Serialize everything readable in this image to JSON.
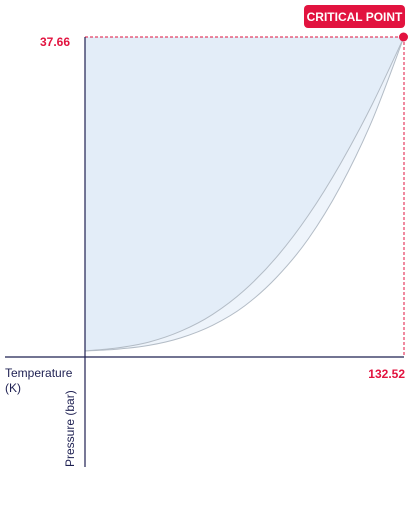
{
  "chart_data": {
    "type": "area",
    "annotation": "CRITICAL POINT",
    "critical_point": {
      "x": 132.52,
      "y": 37.66,
      "x_label": "132.52",
      "y_label": "37.66"
    },
    "xlabel": "Temperature\n(K)",
    "ylabel": "Pressure (bar)",
    "xlim": [
      0,
      132.52
    ],
    "ylim": [
      0,
      37.66
    ],
    "curves": [
      {
        "name": "",
        "x": [
          0,
          13.25,
          26.5,
          39.76,
          53.01,
          66.26,
          79.51,
          92.76,
          106.02,
          119.27,
          132.52
        ],
        "y": [
          0.25,
          0.6,
          1.3,
          2.6,
          4.6,
          7.5,
          11.4,
          16.4,
          22.5,
          29.6,
          37.66
        ]
      },
      {
        "name": "",
        "x": [
          0,
          13.25,
          26.5,
          39.76,
          53.01,
          66.26,
          79.51,
          92.76,
          106.02,
          119.27,
          132.52
        ],
        "y": [
          0.25,
          0.45,
          0.9,
          1.8,
          3.3,
          5.6,
          9.0,
          13.6,
          19.8,
          27.7,
          37.66
        ]
      }
    ],
    "grid": false,
    "legend": "none"
  },
  "colors": {
    "accent": "#e2133f",
    "axis": "#1e2052",
    "fill": "#e3edf8",
    "fill_light": "#eef4fb",
    "curve": "#b3bcc6"
  }
}
